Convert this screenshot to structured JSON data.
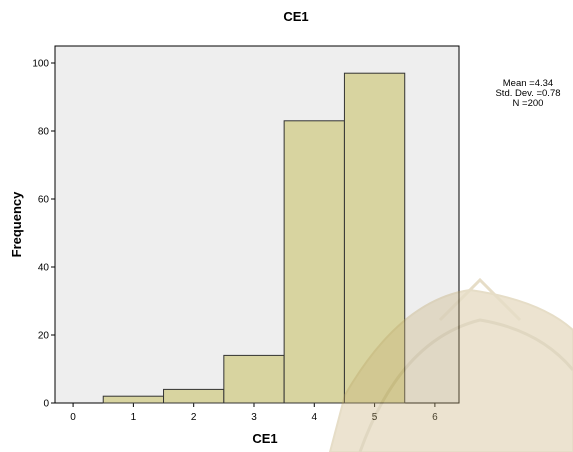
{
  "chart_data": {
    "type": "bar",
    "title": "CE1",
    "xlabel": "CE1",
    "ylabel": "Frequency",
    "x_ticks": [
      0,
      1,
      2,
      3,
      4,
      5,
      6
    ],
    "y_ticks": [
      0,
      20,
      40,
      60,
      80,
      100
    ],
    "xlim": [
      -0.3,
      6.4
    ],
    "ylim": [
      0,
      105
    ],
    "bin_width": 1,
    "bins": [
      {
        "center": 1,
        "count": 2
      },
      {
        "center": 2,
        "count": 4
      },
      {
        "center": 3,
        "count": 14
      },
      {
        "center": 4,
        "count": 83
      },
      {
        "center": 5,
        "count": 97
      }
    ],
    "bar_color": "#d8d4a0",
    "bar_edge_color": "#333333",
    "plot_background": "#eeeeee",
    "stats": [
      "Mean =4.34",
      "Std. Dev. =0.78",
      "N =200"
    ]
  }
}
